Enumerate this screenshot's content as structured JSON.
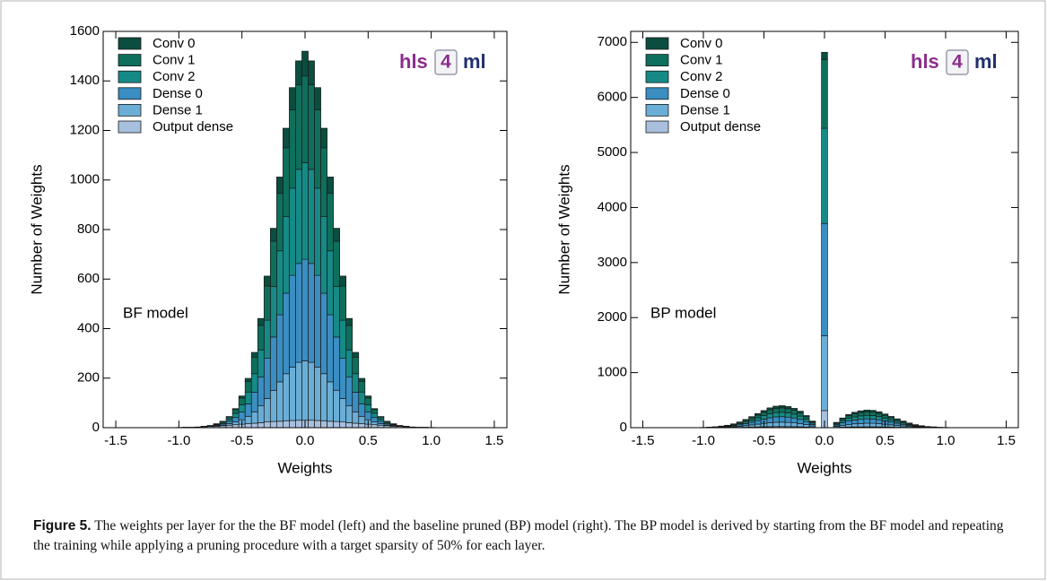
{
  "chart_data": [
    {
      "type": "stacked_histogram",
      "ylabel": "Number of Weights",
      "xlabel": "Weights",
      "annotation": "BF model",
      "logo": [
        "hls",
        "4",
        "ml"
      ],
      "legend": "upper left",
      "xlim": [
        -1.6,
        1.6
      ],
      "ylim": [
        0,
        1600
      ],
      "xticks": [
        -1.5,
        {
          "value": -1,
          "label": "-1.0"
        },
        -0.5,
        {
          "value": 0,
          "label": "0.0"
        },
        0.5,
        {
          "value": 1,
          "label": "1.0"
        },
        1.5
      ],
      "yticks": [
        0,
        200,
        400,
        600,
        800,
        1000,
        1200,
        1400,
        1600
      ],
      "bins": [
        -1.025,
        -0.975,
        -0.925,
        -0.875,
        -0.825,
        -0.775,
        -0.725,
        -0.675,
        -0.625,
        -0.575,
        -0.525,
        -0.475,
        -0.425,
        -0.375,
        -0.325,
        -0.275,
        -0.225,
        -0.175,
        -0.125,
        -0.075,
        -0.025,
        0.025,
        0.075,
        0.125,
        0.175,
        0.225,
        0.275,
        0.325,
        0.375,
        0.425,
        0.475,
        0.525,
        0.575,
        0.625,
        0.675,
        0.725,
        0.775,
        0.825,
        0.875,
        0.925,
        0.975,
        1.025
      ],
      "series": [
        {
          "name": "Conv 0",
          "color": "#0b4d3e",
          "values": [
            0,
            0,
            0,
            0,
            0,
            0,
            1,
            1,
            2,
            4,
            8,
            12,
            19,
            28,
            40,
            52,
            66,
            79,
            90,
            97,
            100,
            97,
            90,
            79,
            66,
            52,
            40,
            28,
            19,
            12,
            8,
            4,
            2,
            1,
            1,
            0,
            0,
            0,
            0,
            0,
            0
          ]
        },
        {
          "name": "Conv 1",
          "color": "#0e6f5c",
          "values": [
            0,
            0,
            0,
            0,
            0,
            1,
            2,
            4,
            8,
            15,
            27,
            43,
            67,
            99,
            138,
            183,
            232,
            278,
            316,
            341,
            350,
            341,
            316,
            278,
            232,
            183,
            138,
            99,
            67,
            43,
            27,
            15,
            8,
            4,
            2,
            1,
            0,
            0,
            0,
            0,
            0
          ]
        },
        {
          "name": "Conv 2",
          "color": "#168a86",
          "values": [
            0,
            0,
            0,
            0,
            1,
            1,
            2,
            5,
            9,
            17,
            30,
            48,
            75,
            110,
            154,
            204,
            258,
            309,
            352,
            380,
            390,
            380,
            352,
            309,
            258,
            204,
            154,
            110,
            75,
            48,
            30,
            17,
            9,
            5,
            2,
            1,
            1,
            0,
            0,
            0,
            0
          ]
        },
        {
          "name": "Dense 0",
          "color": "#3a8ec2",
          "values": [
            0,
            0,
            0,
            0,
            1,
            1,
            3,
            5,
            10,
            18,
            31,
            50,
            79,
            116,
            162,
            215,
            271,
            325,
            370,
            399,
            410,
            399,
            370,
            325,
            271,
            215,
            162,
            116,
            79,
            50,
            31,
            18,
            10,
            5,
            3,
            1,
            1,
            0,
            0,
            0,
            0
          ]
        },
        {
          "name": "Dense 1",
          "color": "#6aaed6",
          "values": [
            0,
            0,
            0,
            0,
            0,
            1,
            2,
            3,
            6,
            11,
            18,
            30,
            46,
            68,
            95,
            126,
            159,
            190,
            216,
            234,
            240,
            234,
            216,
            190,
            159,
            126,
            95,
            68,
            46,
            30,
            18,
            11,
            6,
            3,
            2,
            1,
            0,
            0,
            0,
            0,
            0
          ]
        },
        {
          "name": "Output dense",
          "color": "#a8c0de",
          "values": [
            1,
            2,
            2,
            3,
            4,
            5,
            6,
            8,
            10,
            12,
            14,
            16,
            18,
            20,
            23,
            25,
            26,
            28,
            29,
            30,
            30,
            30,
            29,
            28,
            26,
            25,
            23,
            20,
            18,
            16,
            14,
            12,
            10,
            8,
            6,
            5,
            4,
            3,
            2,
            2,
            1
          ]
        }
      ]
    },
    {
      "type": "stacked_histogram",
      "ylabel": "Number of Weights",
      "xlabel": "Weights",
      "annotation": "BP model",
      "logo": [
        "hls",
        "4",
        "ml"
      ],
      "legend": "upper left",
      "xlim": [
        -1.6,
        1.6
      ],
      "ylim": [
        0,
        7200
      ],
      "xticks": [
        -1.5,
        {
          "value": -1,
          "label": "-1.0"
        },
        -0.5,
        {
          "value": 0,
          "label": "0.0"
        },
        0.5,
        {
          "value": 1,
          "label": "1.0"
        },
        1.5
      ],
      "yticks": [
        0,
        1000,
        2000,
        3000,
        4000,
        5000,
        6000,
        7000
      ],
      "bins": [
        -1.025,
        -0.975,
        -0.925,
        -0.875,
        -0.825,
        -0.775,
        -0.725,
        -0.675,
        -0.625,
        -0.575,
        -0.525,
        -0.475,
        -0.425,
        -0.375,
        -0.325,
        -0.275,
        -0.225,
        -0.175,
        -0.125,
        -0.075,
        -0.025,
        0.025,
        0.075,
        0.125,
        0.175,
        0.225,
        0.275,
        0.325,
        0.375,
        0.425,
        0.475,
        0.525,
        0.575,
        0.625,
        0.675,
        0.725,
        0.775,
        0.825,
        0.875,
        0.925,
        0.975,
        1.025
      ],
      "series": [
        {
          "name": "Conv 0",
          "color": "#0b4d3e",
          "values": [
            0,
            1,
            2,
            3,
            4,
            7,
            10,
            15,
            20,
            26,
            31,
            36,
            39,
            40,
            38,
            35,
            30,
            22,
            12,
            0,
            130,
            0,
            10,
            18,
            24,
            28,
            31,
            32,
            31,
            29,
            25,
            20,
            16,
            12,
            8,
            5,
            4,
            2,
            1,
            1,
            0
          ]
        },
        {
          "name": "Conv 1",
          "color": "#0e6f5c",
          "values": [
            1,
            2,
            3,
            6,
            9,
            14,
            21,
            30,
            40,
            51,
            62,
            72,
            78,
            80,
            77,
            70,
            60,
            44,
            24,
            0,
            1250,
            0,
            19,
            35,
            48,
            56,
            61,
            64,
            63,
            58,
            50,
            41,
            32,
            24,
            17,
            11,
            7,
            4,
            3,
            1,
            1
          ]
        },
        {
          "name": "Conv 2",
          "color": "#168a86",
          "values": [
            1,
            2,
            3,
            6,
            9,
            14,
            21,
            30,
            40,
            51,
            62,
            72,
            78,
            80,
            77,
            70,
            60,
            44,
            24,
            0,
            1730,
            0,
            19,
            35,
            48,
            56,
            61,
            64,
            63,
            58,
            50,
            41,
            32,
            24,
            17,
            11,
            7,
            4,
            3,
            1,
            1
          ]
        },
        {
          "name": "Dense 0",
          "color": "#3a8ec2",
          "values": [
            1,
            2,
            4,
            7,
            11,
            17,
            26,
            37,
            50,
            64,
            78,
            90,
            98,
            100,
            96,
            88,
            75,
            55,
            30,
            0,
            2040,
            0,
            24,
            44,
            60,
            70,
            77,
            80,
            78,
            72,
            62,
            51,
            40,
            30,
            21,
            14,
            9,
            6,
            3,
            2,
            1
          ]
        },
        {
          "name": "Dense 1",
          "color": "#6aaed6",
          "values": [
            1,
            2,
            3,
            6,
            9,
            14,
            21,
            30,
            40,
            51,
            62,
            72,
            78,
            80,
            77,
            70,
            60,
            44,
            24,
            0,
            1360,
            0,
            19,
            35,
            48,
            56,
            61,
            64,
            63,
            58,
            50,
            41,
            32,
            24,
            17,
            11,
            7,
            4,
            3,
            1,
            1
          ]
        },
        {
          "name": "Output dense",
          "color": "#a8c0de",
          "values": [
            0,
            0,
            1,
            1,
            2,
            3,
            5,
            7,
            10,
            13,
            16,
            18,
            20,
            20,
            19,
            18,
            15,
            11,
            6,
            0,
            310,
            0,
            5,
            9,
            12,
            14,
            15,
            16,
            16,
            14,
            12,
            10,
            8,
            6,
            4,
            3,
            2,
            1,
            1,
            0,
            0
          ]
        }
      ]
    }
  ],
  "caption": {
    "label": "Figure 5.",
    "text": "The weights per layer for the the BF model (left) and the baseline pruned (BP) model (right). The BP model is derived by starting from the BF model and repeating the training while applying a pruning procedure with a target sparsity of 50% for each layer."
  }
}
